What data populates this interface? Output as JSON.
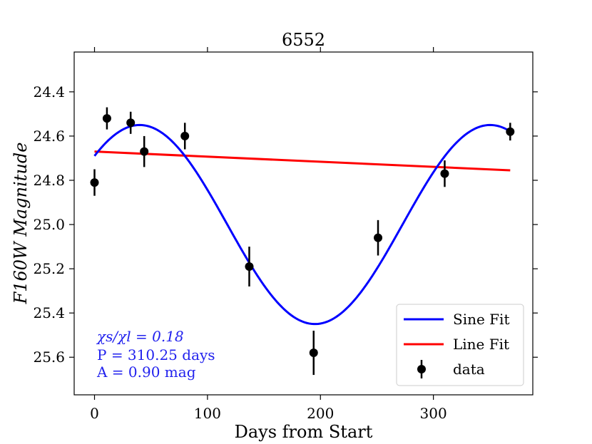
{
  "chart_data": {
    "type": "scatter",
    "title": "6552",
    "xlabel": "Days from Start",
    "ylabel": "F160W Magnitude",
    "xlim": [
      -18,
      388
    ],
    "ylim": [
      25.77,
      24.22
    ],
    "y_inverted": true,
    "grid": false,
    "x_ticks": [
      0,
      100,
      200,
      300
    ],
    "y_ticks": [
      24.4,
      24.6,
      24.8,
      25.0,
      25.2,
      25.4,
      25.6
    ],
    "x_tick_labels": [
      "0",
      "100",
      "200",
      "300"
    ],
    "y_tick_labels": [
      "24.4",
      "24.6",
      "24.8",
      "25.0",
      "25.2",
      "25.4",
      "25.6"
    ],
    "legend_position": "lower-right",
    "legend": {
      "sine": "Sine Fit",
      "line": "Line Fit",
      "data": "data"
    },
    "annotation": {
      "chi": "χs/χl = 0.18",
      "period": "P = 310.25 days",
      "amplitude": "A = 0.90 mag"
    },
    "colors": {
      "sine": "#0000ff",
      "line": "#ff0000",
      "data": "#000000",
      "annotation": "#2222ee"
    },
    "data_points": [
      {
        "x": 0,
        "y": 24.81,
        "err": 0.06
      },
      {
        "x": 11,
        "y": 24.52,
        "err": 0.05
      },
      {
        "x": 32,
        "y": 24.54,
        "err": 0.05
      },
      {
        "x": 44,
        "y": 24.67,
        "err": 0.07
      },
      {
        "x": 80,
        "y": 24.6,
        "err": 0.06
      },
      {
        "x": 137,
        "y": 25.19,
        "err": 0.09
      },
      {
        "x": 194,
        "y": 25.58,
        "err": 0.1
      },
      {
        "x": 251,
        "y": 25.06,
        "err": 0.08
      },
      {
        "x": 310,
        "y": 24.77,
        "err": 0.06
      },
      {
        "x": 368,
        "y": 24.58,
        "err": 0.04
      }
    ],
    "sine_fit": {
      "period_days": 310.25,
      "amplitude": 0.9,
      "mean_mag": 25.0,
      "peak_day": 40
    },
    "line_fit": {
      "x": [
        0,
        368
      ],
      "y": [
        24.67,
        24.755
      ]
    }
  }
}
